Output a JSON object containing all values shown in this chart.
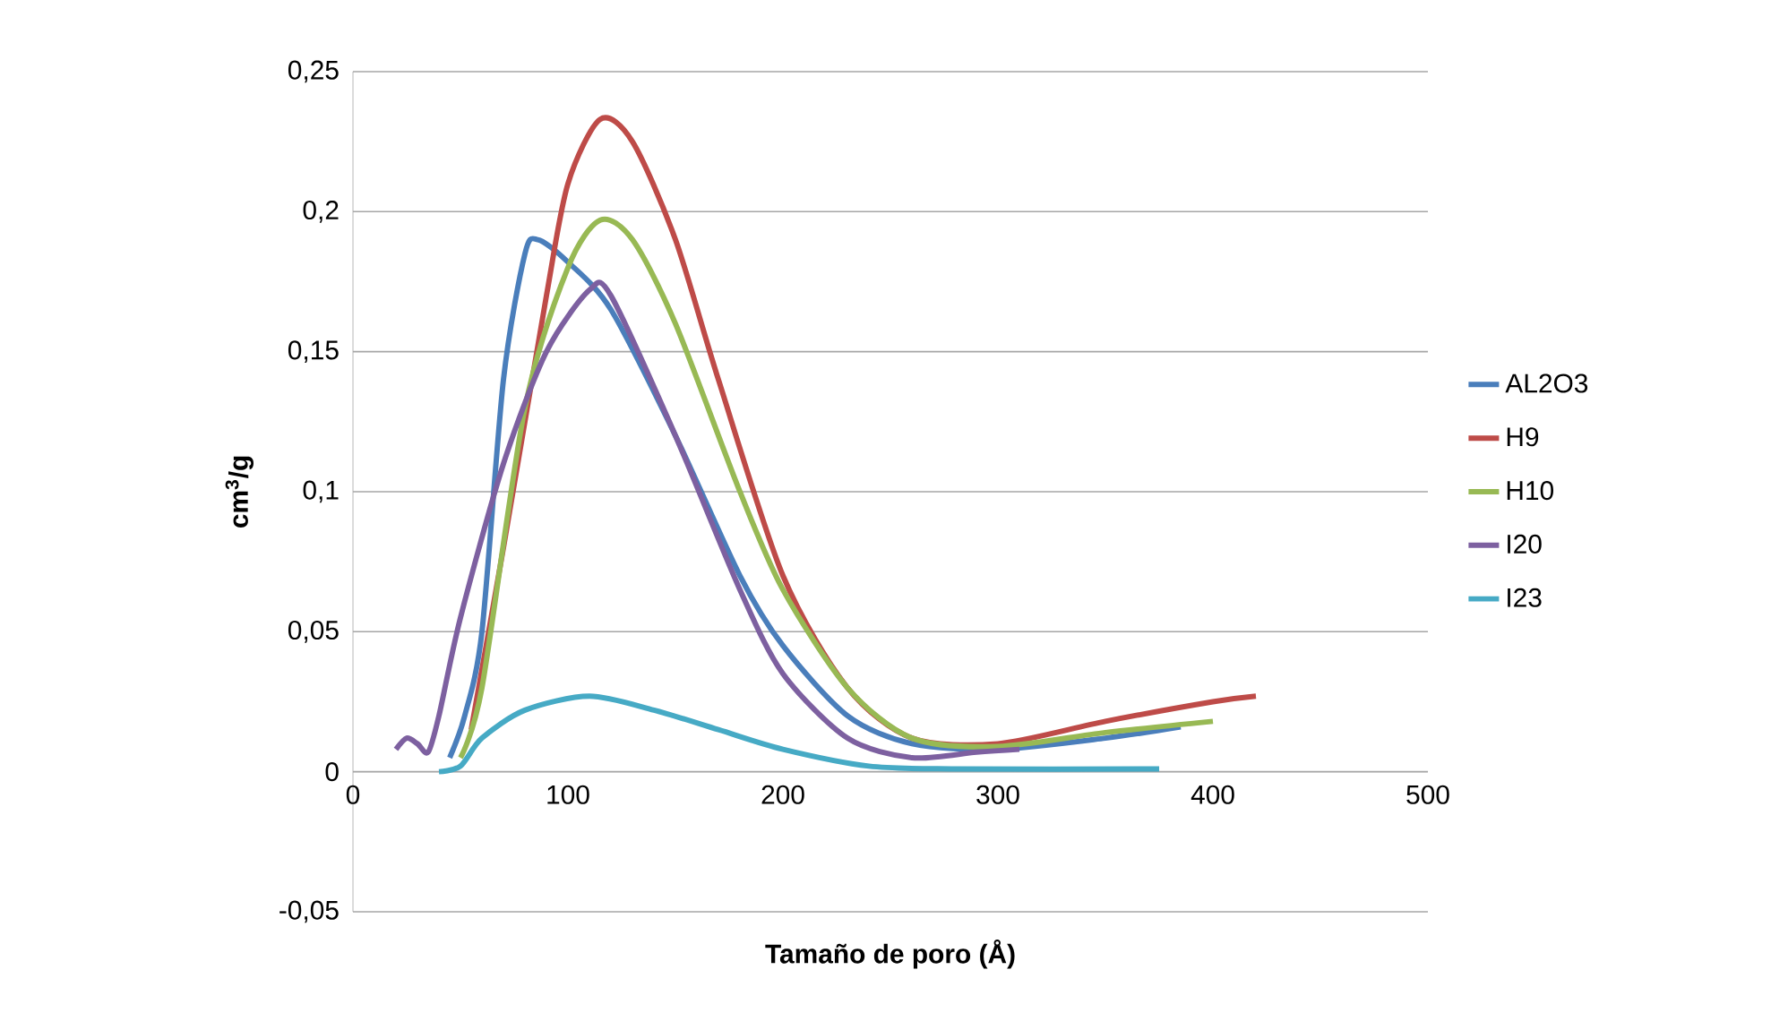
{
  "chart_data": {
    "type": "line",
    "xlabel": "Tamaño de poro (Å)",
    "ylabel": "cm$^{3}$/g",
    "xlim": [
      0,
      500
    ],
    "ylim": [
      -0.05,
      0.25
    ],
    "xticks": [
      0,
      100,
      200,
      300,
      400,
      500
    ],
    "yticks": [
      {
        "value": -0.05,
        "label": "-0,05"
      },
      {
        "value": 0,
        "label": "0"
      },
      {
        "value": 0.05,
        "label": "0,05"
      },
      {
        "value": 0.1,
        "label": "0,1"
      },
      {
        "value": 0.15,
        "label": "0,15"
      },
      {
        "value": 0.2,
        "label": "0,2"
      },
      {
        "value": 0.25,
        "label": "0,25"
      }
    ],
    "grid": "y",
    "legend": "right",
    "series": [
      {
        "name": "AL2O3",
        "color": "#4a7ebb",
        "x": [
          45,
          52,
          60,
          70,
          80,
          86,
          100,
          120,
          150,
          180,
          200,
          230,
          260,
          300,
          350,
          385
        ],
        "values": [
          0.005,
          0.02,
          0.05,
          0.14,
          0.185,
          0.19,
          0.182,
          0.165,
          0.12,
          0.07,
          0.045,
          0.02,
          0.01,
          0.008,
          0.012,
          0.016
        ]
      },
      {
        "name": "H9",
        "color": "#be4b48",
        "x": [
          55,
          70,
          90,
          100,
          115,
          130,
          150,
          170,
          200,
          230,
          260,
          300,
          350,
          400,
          420
        ],
        "values": [
          0.015,
          0.08,
          0.17,
          0.21,
          0.233,
          0.225,
          0.19,
          0.14,
          0.07,
          0.03,
          0.012,
          0.01,
          0.018,
          0.025,
          0.027
        ]
      },
      {
        "name": "H10",
        "color": "#98b954",
        "x": [
          50,
          60,
          80,
          100,
          115,
          130,
          150,
          180,
          200,
          230,
          260,
          300,
          350,
          400
        ],
        "values": [
          0.005,
          0.03,
          0.13,
          0.18,
          0.197,
          0.19,
          0.16,
          0.1,
          0.065,
          0.03,
          0.012,
          0.009,
          0.014,
          0.018
        ]
      },
      {
        "name": "I20",
        "color": "#7d60a0",
        "x": [
          20,
          25,
          30,
          35,
          40,
          50,
          70,
          90,
          110,
          120,
          150,
          180,
          200,
          230,
          260,
          290,
          310
        ],
        "values": [
          0.008,
          0.012,
          0.01,
          0.007,
          0.02,
          0.055,
          0.11,
          0.15,
          0.172,
          0.17,
          0.12,
          0.065,
          0.035,
          0.012,
          0.005,
          0.007,
          0.008
        ]
      },
      {
        "name": "I23",
        "color": "#46aac5",
        "x": [
          40,
          50,
          60,
          80,
          110,
          140,
          170,
          200,
          240,
          280,
          375
        ],
        "values": [
          0,
          0.002,
          0.012,
          0.022,
          0.027,
          0.022,
          0.015,
          0.008,
          0.002,
          0.001,
          0.001
        ]
      }
    ]
  }
}
